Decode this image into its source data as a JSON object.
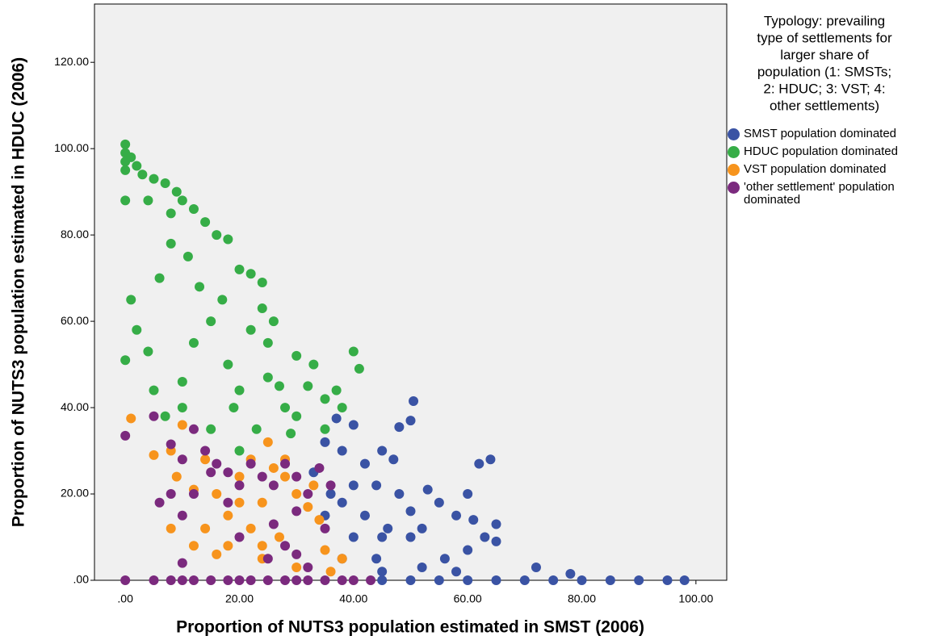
{
  "chart_data": {
    "type": "scatter",
    "x_label": "Proportion of NUTS3 population estimated in SMST (2006)",
    "y_label": "Proportion of NUTS3 population estimated in HDUC (2006)",
    "legend_title": [
      "Typology: prevailing",
      "type of settlements for",
      "larger share of",
      "population (1: SMSTs;",
      "2: HDUC; 3: VST; 4:",
      "other settlements)"
    ],
    "xlim": [
      -5.4,
      105.4
    ],
    "ylim": [
      0,
      133.5
    ],
    "xticks": [
      {
        "value": 0,
        "label": ".00"
      },
      {
        "value": 20,
        "label": "20.00"
      },
      {
        "value": 40,
        "label": "40.00"
      },
      {
        "value": 60,
        "label": "60.00"
      },
      {
        "value": 80,
        "label": "80.00"
      },
      {
        "value": 100,
        "label": "100.00"
      }
    ],
    "yticks": [
      {
        "value": 0,
        "label": ".00"
      },
      {
        "value": 20,
        "label": "20.00"
      },
      {
        "value": 40,
        "label": "40.00"
      },
      {
        "value": 60,
        "label": "60.00"
      },
      {
        "value": 80,
        "label": "80.00"
      },
      {
        "value": 100,
        "label": "100.00"
      },
      {
        "value": 120,
        "label": "120.00"
      }
    ],
    "series": [
      {
        "name": "SMST population dominated",
        "color": "#3a53a4",
        "x": [
          50.5,
          48,
          50,
          37,
          40,
          35,
          38,
          42,
          45,
          47,
          40,
          36,
          38,
          42,
          44,
          48,
          50,
          52,
          55,
          58,
          60,
          62,
          64,
          63,
          60,
          56,
          52,
          50,
          45,
          40,
          38,
          45,
          58,
          65,
          72,
          78,
          70,
          75,
          80,
          85,
          90,
          95,
          98,
          55,
          60,
          65,
          45,
          50,
          35,
          33,
          44,
          53,
          46,
          65,
          61
        ],
        "values": [
          41.5,
          35.5,
          37,
          37.5,
          36,
          32,
          30,
          27,
          30,
          28,
          22,
          20,
          18,
          15,
          22,
          20,
          16,
          12,
          18,
          15,
          20,
          27,
          28,
          10,
          7,
          5,
          3,
          10,
          10,
          10,
          5,
          2,
          2,
          9,
          3,
          1.5,
          0,
          0,
          0,
          0,
          0,
          0,
          0,
          0,
          0,
          0,
          0,
          0,
          15,
          25,
          5,
          21,
          12,
          13,
          14
        ]
      },
      {
        "name": "HDUC population dominated",
        "color": "#36ad47",
        "x": [
          0,
          0,
          0,
          0,
          1,
          2,
          3,
          5,
          7,
          9,
          10,
          12,
          14,
          16,
          18,
          20,
          22,
          24,
          4,
          8,
          0,
          0,
          2,
          1,
          4,
          5,
          7,
          10,
          12,
          15,
          18,
          20,
          22,
          25,
          27,
          28,
          30,
          32,
          35,
          37,
          38,
          40,
          41,
          26,
          24,
          30,
          33,
          35,
          20,
          15,
          10,
          6,
          8,
          11,
          13,
          17,
          19,
          23,
          29,
          25
        ],
        "values": [
          101,
          99,
          97,
          95,
          98,
          96,
          94,
          93,
          92,
          90,
          88,
          86,
          83,
          80,
          79,
          72,
          71,
          69,
          88,
          85,
          88,
          51,
          58,
          65,
          53,
          44,
          38,
          46,
          55,
          60,
          50,
          44,
          58,
          55,
          45,
          40,
          38,
          45,
          42,
          44,
          40,
          53,
          49,
          60,
          63,
          52,
          50,
          35,
          30,
          35,
          40,
          70,
          78,
          75,
          68,
          65,
          40,
          35,
          34,
          47
        ]
      },
      {
        "name": "VST population dominated",
        "color": "#f7941d",
        "x": [
          1,
          5,
          8,
          10,
          9,
          8,
          12,
          14,
          16,
          18,
          20,
          22,
          24,
          26,
          28,
          30,
          32,
          34,
          22,
          24,
          18,
          16,
          24,
          30,
          35,
          36,
          28,
          25,
          20,
          14,
          27,
          33,
          38,
          12
        ],
        "values": [
          37.5,
          29,
          30,
          36,
          24,
          12,
          21,
          28,
          20,
          15,
          24,
          28,
          18,
          26,
          24,
          20,
          17,
          14,
          12,
          8,
          8,
          6,
          5,
          3,
          7,
          2,
          28,
          32,
          18,
          12,
          10,
          22,
          5,
          8
        ]
      },
      {
        "name": "'other settlement' population dominated",
        "color": "#7b2a7e",
        "x": [
          0,
          0,
          5,
          8,
          10,
          12,
          14,
          16,
          18,
          20,
          22,
          24,
          26,
          28,
          30,
          32,
          34,
          36,
          10,
          12,
          15,
          18,
          20,
          26,
          28,
          30,
          32,
          10,
          8,
          6,
          25,
          30,
          35,
          5,
          8,
          10,
          12,
          15,
          18,
          20,
          22,
          25,
          28,
          30,
          32,
          35,
          38,
          40,
          43
        ],
        "values": [
          33.5,
          0,
          38,
          31.5,
          28,
          35,
          30,
          27,
          25,
          22,
          27,
          24,
          22,
          27,
          24,
          20,
          26,
          22,
          15,
          20,
          25,
          18,
          10,
          13,
          8,
          6,
          3,
          4,
          20,
          18,
          5,
          16,
          12,
          0,
          0,
          0,
          0,
          0,
          0,
          0,
          0,
          0,
          0,
          0,
          0,
          0,
          0,
          0,
          0
        ]
      }
    ]
  }
}
